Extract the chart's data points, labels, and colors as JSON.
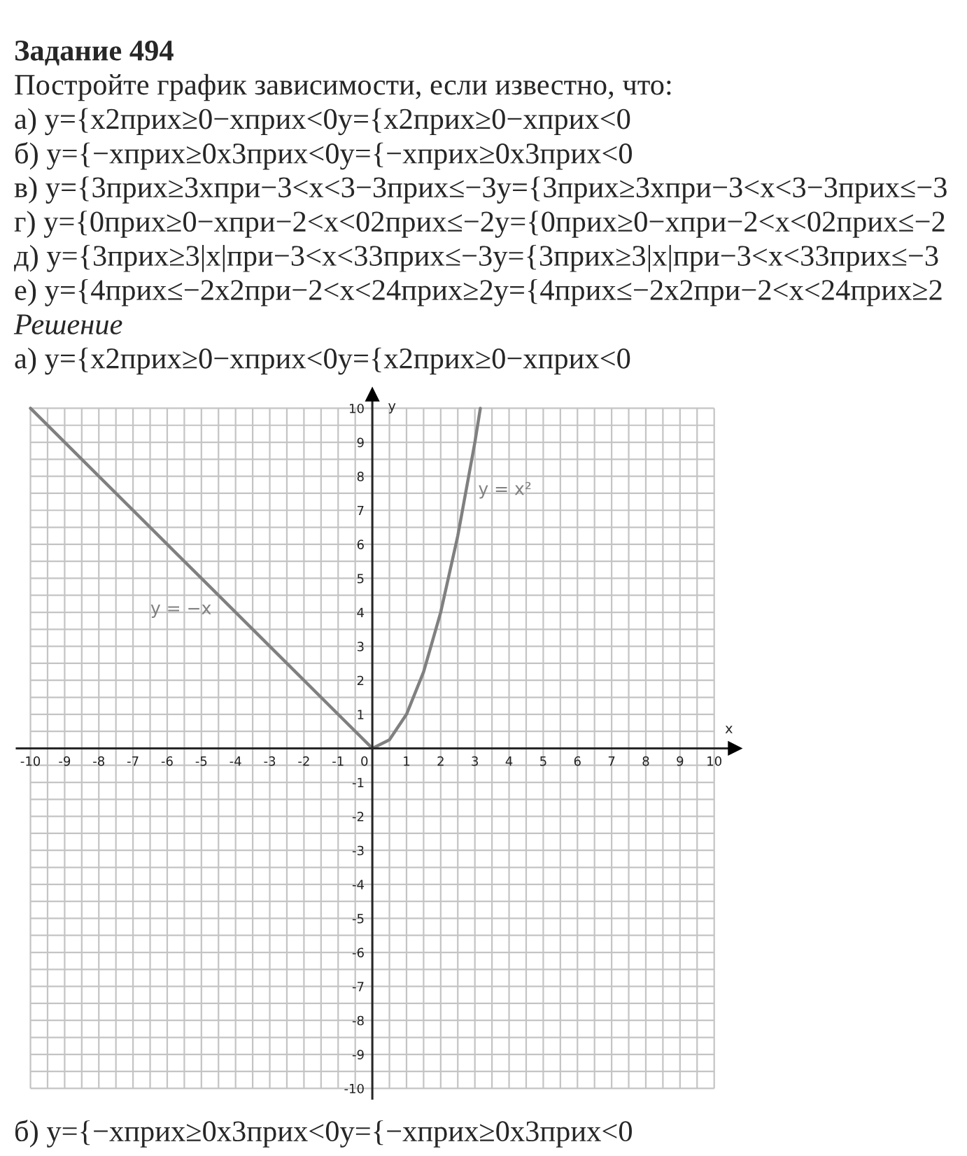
{
  "chart_data": {
    "type": "line",
    "title": "Задание 494",
    "subtitle": "Постройте график зависимости, если известно, что:",
    "annotations": [
      "а) у={x2прих≥0−xприх<0у={x2прих≥0−xприх<0",
      "б) у={−xприх≥0x3прих<0у={−xприх≥0x3прих<0",
      "в) у={3прих≥3xпри−3<x<3−3прих≤−3у={3прих≥3xпри−3<x<3−3прих≤−3",
      "г) у={0прих≥0−xпри−2<x<02прих≤−2у={0прих≥0−xпри−2<x<02прих≤−2",
      "д) у={3прих≥3|x|при−3<x<33прих≤−3у={3прих≥3|x|при−3<x<33прих≤−3",
      "е) у={4прих≤−2x2при−2<x<24прих≥2у={4прих≤−2x2при−2<x<24прих≥2",
      "Решение",
      "а) у={x2прих≥0−xприх<0у={x2прих≥0−xприх<0",
      "б) у={−xприх≥0x3прих<0у={−xприх≥0x3прих<0"
    ],
    "xlabel": "x",
    "ylabel": "y",
    "series": [
      {
        "name": "y = −x",
        "color": "#808080",
        "x": [
          -10,
          -5,
          0
        ],
        "values": [
          10,
          5,
          0
        ]
      },
      {
        "name": "y = x²",
        "color": "#808080",
        "x": [
          0,
          0.5,
          1,
          1.5,
          2,
          2.5,
          3,
          3.16
        ],
        "values": [
          0,
          0.25,
          1,
          2.25,
          4,
          6.25,
          9,
          10
        ]
      }
    ],
    "xlim": [
      -10.4,
      10.6
    ],
    "ylim": [
      -10.3,
      10.4
    ],
    "xticks": [
      -10,
      {
        "value": -9.5,
        "label": null
      },
      -9,
      {
        "value": -8.5,
        "label": null
      },
      -8,
      {
        "value": -7.5,
        "label": null
      },
      -7,
      {
        "value": -6.5,
        "label": null
      },
      -6,
      {
        "value": -5.5,
        "label": null
      },
      -5,
      {
        "value": -4.5,
        "label": null
      },
      -4,
      {
        "value": -3.5,
        "label": null
      },
      -3,
      {
        "value": -2.5,
        "label": null
      },
      -2,
      {
        "value": -1.5,
        "label": null
      },
      -1,
      {
        "value": -0.5,
        "label": null
      },
      0,
      {
        "value": 0.5,
        "label": null
      },
      1,
      {
        "value": 1.5,
        "label": null
      },
      2,
      {
        "value": 2.5,
        "label": null
      },
      3,
      {
        "value": 3.5,
        "label": null
      },
      4,
      {
        "value": 4.5,
        "label": null
      },
      5,
      {
        "value": 5.5,
        "label": null
      },
      6,
      {
        "value": 6.5,
        "label": null
      },
      7,
      {
        "value": 7.5,
        "label": null
      },
      8,
      {
        "value": 8.5,
        "label": null
      },
      9,
      {
        "value": 9.5,
        "label": null
      },
      10
    ],
    "yticks": [
      -10,
      {
        "value": -9.5,
        "label": null
      },
      -9,
      {
        "value": -8.5,
        "label": null
      },
      -8,
      {
        "value": -7.5,
        "label": null
      },
      -7,
      {
        "value": -6.5,
        "label": null
      },
      -6,
      {
        "value": -5.5,
        "label": null
      },
      -5,
      {
        "value": -4.5,
        "label": null
      },
      -4,
      {
        "value": -3.5,
        "label": null
      },
      -3,
      {
        "value": -2.5,
        "label": null
      },
      -2,
      {
        "value": -1.5,
        "label": null
      },
      -1,
      {
        "value": -0.5,
        "label": null
      },
      {
        "value": 0,
        "label": null
      },
      {
        "value": 0.5,
        "label": null
      },
      1,
      {
        "value": 1.5,
        "label": null
      },
      2,
      {
        "value": 2.5,
        "label": null
      },
      3,
      {
        "value": 3.5,
        "label": null
      },
      4,
      {
        "value": 4.5,
        "label": null
      },
      5,
      {
        "value": 5.5,
        "label": null
      },
      6,
      {
        "value": 6.5,
        "label": null
      },
      7,
      {
        "value": 7.5,
        "label": null
      },
      8,
      {
        "value": 8.5,
        "label": null
      },
      9,
      {
        "value": 9.5,
        "label": null
      },
      10
    ],
    "grid": true
  }
}
